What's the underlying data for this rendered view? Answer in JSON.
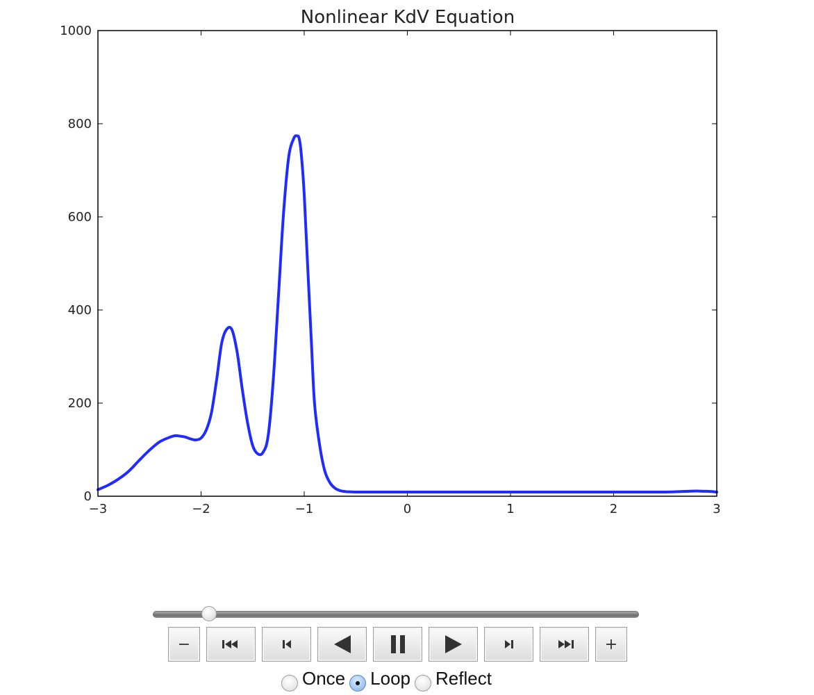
{
  "chart_data": {
    "type": "line",
    "title": "Nonlinear KdV Equation",
    "xlabel": "",
    "ylabel": "",
    "xlim": [
      -3,
      3
    ],
    "ylim": [
      0,
      1000
    ],
    "xticks": [
      -3,
      -2,
      -1,
      0,
      1,
      2,
      3
    ],
    "xtick_labels": [
      "−3",
      "−2",
      "−1",
      "0",
      "1",
      "2",
      "3"
    ],
    "yticks": [
      0,
      200,
      400,
      600,
      800,
      1000
    ],
    "ytick_labels": [
      "0",
      "200",
      "400",
      "600",
      "800",
      "1000"
    ],
    "grid": false,
    "legend": "none",
    "line_color": "#1f2bff",
    "series": [
      {
        "x": [
          -3.0,
          -2.9,
          -2.8,
          -2.7,
          -2.6,
          -2.5,
          -2.4,
          -2.3,
          -2.25,
          -2.2,
          -2.15,
          -2.1,
          -2.05,
          -2.0,
          -1.95,
          -1.9,
          -1.85,
          -1.8,
          -1.75,
          -1.7,
          -1.65,
          -1.6,
          -1.55,
          -1.5,
          -1.45,
          -1.4,
          -1.35,
          -1.3,
          -1.25,
          -1.2,
          -1.15,
          -1.1,
          -1.07,
          -1.05,
          -1.03,
          -1.0,
          -0.97,
          -0.93,
          -0.9,
          -0.85,
          -0.8,
          -0.75,
          -0.7,
          -0.65,
          -0.6,
          -0.55,
          -0.5,
          -0.4,
          -0.2,
          0.0,
          0.5,
          1.0,
          1.5,
          2.0,
          2.3,
          2.5,
          2.65,
          2.75,
          2.85,
          2.95,
          3.0
        ],
        "y": [
          5,
          15,
          28,
          45,
          68,
          90,
          108,
          118,
          121,
          120,
          118,
          114,
          112,
          116,
          133,
          170,
          240,
          320,
          350,
          348,
          300,
          220,
          150,
          100,
          82,
          85,
          120,
          240,
          420,
          600,
          720,
          760,
          765,
          760,
          730,
          640,
          500,
          320,
          190,
          100,
          45,
          20,
          8,
          3,
          1,
          0.5,
          0,
          0,
          0,
          0,
          0,
          0,
          0,
          0,
          0,
          0,
          1,
          2,
          2,
          1,
          0
        ]
      }
    ]
  },
  "controls": {
    "slider": {
      "value": 0.115
    },
    "buttons": {
      "minus": "−",
      "plus": "+"
    },
    "modes": {
      "once": "Once",
      "loop": "Loop",
      "reflect": "Reflect",
      "selected": "loop"
    },
    "icons": {
      "first": "skip-to-first-icon",
      "previous_frame": "step-back-icon",
      "play_reverse": "play-reverse-icon",
      "pause": "pause-icon",
      "play": "play-icon",
      "next_frame": "step-forward-icon",
      "last": "skip-to-last-icon"
    }
  }
}
